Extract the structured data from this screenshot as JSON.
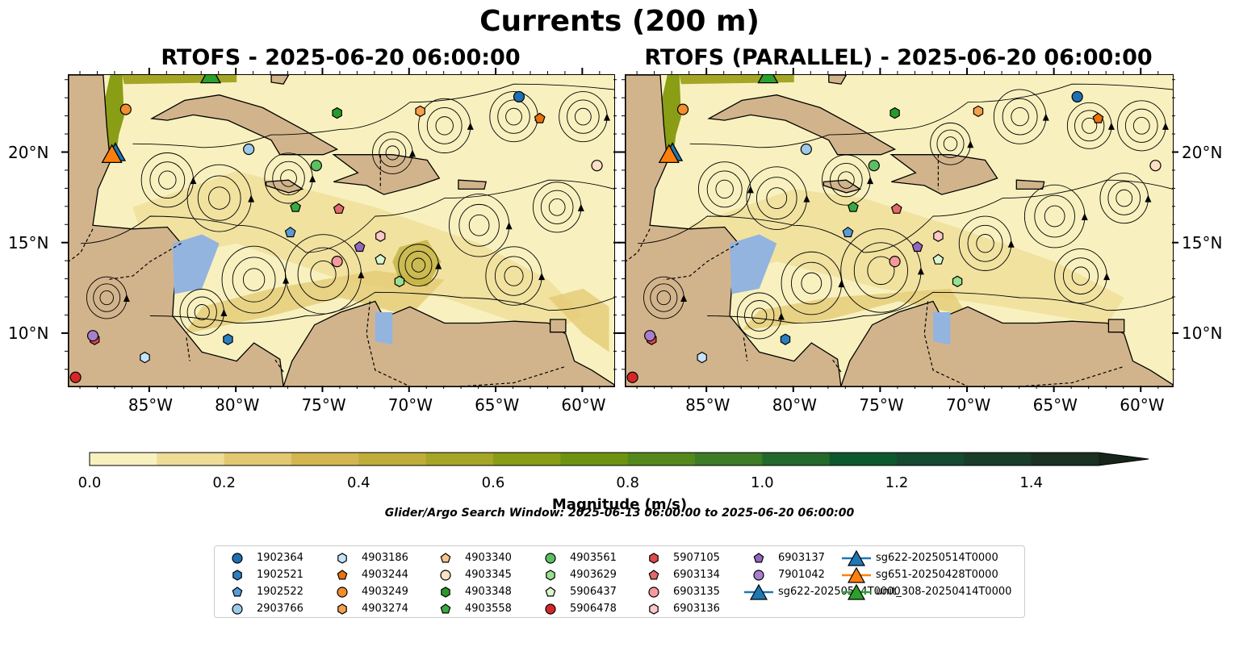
{
  "title": "Currents (200 m)",
  "panels": [
    {
      "title": "RTOFS - 2025-06-20 06:00:00"
    },
    {
      "title": "RTOFS (PARALLEL) - 2025-06-20 06:00:00"
    }
  ],
  "axes": {
    "lon_ticks": [
      "85°W",
      "80°W",
      "75°W",
      "70°W",
      "65°W",
      "60°W"
    ],
    "lon_values": [
      -85,
      -80,
      -75,
      -70,
      -65,
      -60
    ],
    "lat_ticks": [
      "20°N",
      "15°N",
      "10°N"
    ],
    "lat_values": [
      20,
      15,
      10
    ],
    "lon_range": [
      -89.7,
      -58.2
    ],
    "lat_range": [
      7.1,
      24.3
    ]
  },
  "colorbar": {
    "label": "Magnitude (m/s)",
    "ticks": [
      "0.0",
      "0.2",
      "0.4",
      "0.6",
      "0.8",
      "1.0",
      "1.2",
      "1.4"
    ],
    "tick_values": [
      0.0,
      0.2,
      0.4,
      0.6,
      0.8,
      1.0,
      1.2,
      1.4
    ],
    "range": [
      0.0,
      1.5
    ],
    "extend": "max",
    "colors": [
      "#f8f1bf",
      "#efdc96",
      "#e3c872",
      "#d3b650",
      "#bead38",
      "#a5a626",
      "#899d15",
      "#6e940f",
      "#55881b",
      "#3d7b26",
      "#23692b",
      "#0c582c",
      "#154a31",
      "#193d29",
      "#1a3121",
      "#17241a"
    ]
  },
  "search_window": "Glider/Argo Search Window: 2025-06-13 06:00:00 to 2025-06-20 06:00:00",
  "legend": {
    "items": [
      {
        "label": "1902364",
        "marker": "circle",
        "color": "#1f6fb4"
      },
      {
        "label": "1902521",
        "marker": "hexagon",
        "color": "#2b7fc0"
      },
      {
        "label": "1902522",
        "marker": "pentagon",
        "color": "#5b9bd5"
      },
      {
        "label": "2903766",
        "marker": "circle",
        "color": "#9ecae9"
      },
      {
        "label": "4903186",
        "marker": "hexagon",
        "color": "#c6e4f7"
      },
      {
        "label": "4903244",
        "marker": "pentagon",
        "color": "#e8730c"
      },
      {
        "label": "4903249",
        "marker": "circle",
        "color": "#f28e2b"
      },
      {
        "label": "4903274",
        "marker": "hexagon",
        "color": "#f5a04e"
      },
      {
        "label": "4903340",
        "marker": "pentagon",
        "color": "#f9c28e"
      },
      {
        "label": "4903345",
        "marker": "circle",
        "color": "#fde0c5"
      },
      {
        "label": "4903348",
        "marker": "hexagon",
        "color": "#2a9a2a"
      },
      {
        "label": "4903558",
        "marker": "pentagon",
        "color": "#3aaa44"
      },
      {
        "label": "4903561",
        "marker": "circle",
        "color": "#5cc063"
      },
      {
        "label": "4903629",
        "marker": "hexagon",
        "color": "#98e08f"
      },
      {
        "label": "5906437",
        "marker": "pentagon",
        "color": "#d9f7cf"
      },
      {
        "label": "5906478",
        "marker": "circle",
        "color": "#d62728"
      },
      {
        "label": "5907105",
        "marker": "hexagon",
        "color": "#df4a4a"
      },
      {
        "label": "6903134",
        "marker": "pentagon",
        "color": "#e46a6a"
      },
      {
        "label": "6903135",
        "marker": "circle",
        "color": "#f49a9a"
      },
      {
        "label": "6903136",
        "marker": "hexagon",
        "color": "#fcc8c8"
      },
      {
        "label": "6903137",
        "marker": "pentagon",
        "color": "#9467bd"
      },
      {
        "label": "7901042",
        "marker": "circle",
        "color": "#a77fcb"
      },
      {
        "label": "sg622-20250514T0000",
        "marker": "triangle-line",
        "color": "#1f77b4"
      },
      {
        "label": "sg651-20250428T0000",
        "marker": "triangle-line",
        "color": "#ff7f0e"
      },
      {
        "label": "unit_308-20250414T0000",
        "marker": "triangle-line",
        "color": "#2ca02c"
      }
    ]
  },
  "floats": [
    {
      "id": "1902364",
      "marker": "circle",
      "color": "#1f6fb4",
      "lon": -63.7,
      "lat": 23.1
    },
    {
      "id": "1902521",
      "marker": "hexagon",
      "color": "#2b7fc0",
      "lon": -80.5,
      "lat": 9.7
    },
    {
      "id": "1902522",
      "marker": "pentagon",
      "color": "#5b9bd5",
      "lon": -76.9,
      "lat": 15.6
    },
    {
      "id": "2903766",
      "marker": "circle",
      "color": "#9ecae9",
      "lon": -79.3,
      "lat": 20.2
    },
    {
      "id": "4903186",
      "marker": "hexagon",
      "color": "#c6e4f7",
      "lon": -85.3,
      "lat": 8.7
    },
    {
      "id": "4903244",
      "marker": "pentagon",
      "color": "#e8730c",
      "lon": -62.5,
      "lat": 21.9
    },
    {
      "id": "4903249",
      "marker": "circle",
      "color": "#f28e2b",
      "lon": -86.4,
      "lat": 22.4
    },
    {
      "id": "4903274",
      "marker": "hexagon",
      "color": "#f5a04e",
      "lon": -69.4,
      "lat": 22.3
    },
    {
      "id": "4903345",
      "marker": "circle",
      "color": "#fde0c5",
      "lon": -59.2,
      "lat": 19.3
    },
    {
      "id": "4903348",
      "marker": "hexagon",
      "color": "#2a9a2a",
      "lon": -74.2,
      "lat": 22.2
    },
    {
      "id": "4903558",
      "marker": "pentagon",
      "color": "#3aaa44",
      "lon": -76.6,
      "lat": 17.0
    },
    {
      "id": "4903561",
      "marker": "circle",
      "color": "#5cc063",
      "lon": -75.4,
      "lat": 19.3
    },
    {
      "id": "4903629",
      "marker": "hexagon",
      "color": "#98e08f",
      "lon": -70.6,
      "lat": 12.9
    },
    {
      "id": "5906437",
      "marker": "pentagon",
      "color": "#d9f7cf",
      "lon": -71.7,
      "lat": 14.1
    },
    {
      "id": "5906478",
      "marker": "circle",
      "color": "#d62728",
      "lon": -89.3,
      "lat": 7.6
    },
    {
      "id": "5907105",
      "marker": "hexagon",
      "color": "#df4a4a",
      "lon": -88.2,
      "lat": 9.7
    },
    {
      "id": "6903134",
      "marker": "pentagon",
      "color": "#e46a6a",
      "lon": -74.1,
      "lat": 16.9
    },
    {
      "id": "6903135",
      "marker": "circle",
      "color": "#f49a9a",
      "lon": -74.2,
      "lat": 14.0
    },
    {
      "id": "6903136",
      "marker": "hexagon",
      "color": "#fcc8c8",
      "lon": -71.7,
      "lat": 15.4
    },
    {
      "id": "6903137",
      "marker": "pentagon",
      "color": "#9467bd",
      "lon": -72.9,
      "lat": 14.8
    },
    {
      "id": "7901042",
      "marker": "circle",
      "color": "#a77fcb",
      "lon": -88.3,
      "lat": 9.9
    }
  ],
  "gliders": [
    {
      "id": "sg622-20250514T0000",
      "color": "#1f77b4",
      "lon": -87.0,
      "lat": 20.0
    },
    {
      "id": "sg651-20250428T0000",
      "color": "#ff7f0e",
      "lon": -87.2,
      "lat": 19.9
    },
    {
      "id": "unit_308-20250414T0000",
      "color": "#2ca02c",
      "lon": -81.5,
      "lat": 24.3
    }
  ]
}
